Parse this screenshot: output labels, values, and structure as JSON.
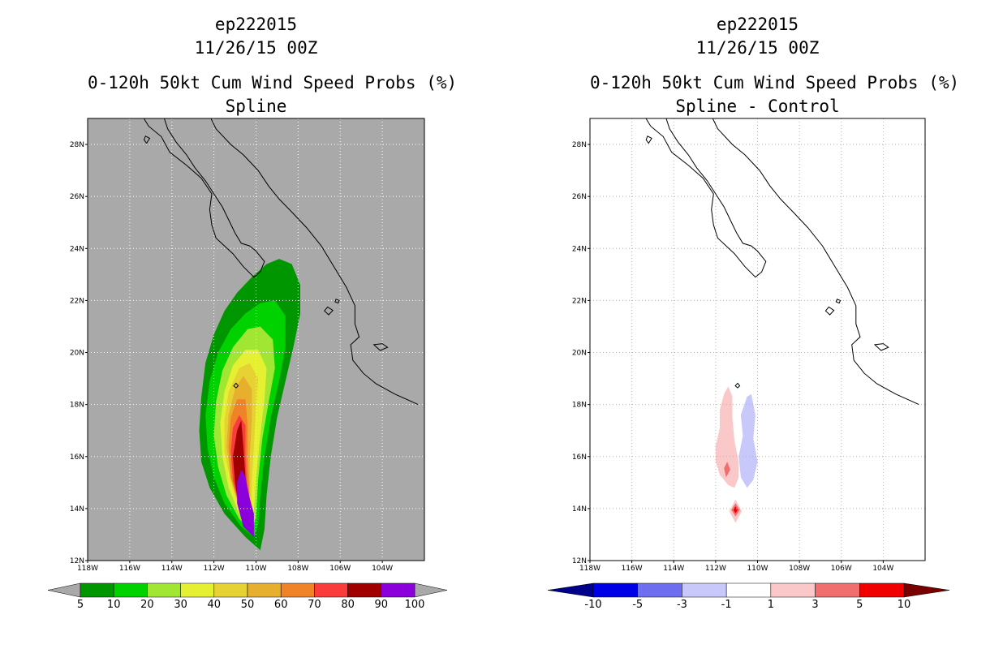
{
  "chart_data": [
    {
      "type": "contour_map",
      "title": [
        "ep222015",
        "11/26/15 00Z"
      ],
      "subtitle": [
        "0-120h 50kt Cum Wind Speed Probs (%)",
        "Spline"
      ],
      "units": "%",
      "xlim": [
        -118,
        -102
      ],
      "ylim": [
        12,
        29
      ],
      "x_ticks": [
        "118W",
        "116W",
        "114W",
        "112W",
        "110W",
        "108W",
        "106W",
        "104W"
      ],
      "y_ticks": [
        "12N",
        "14N",
        "16N",
        "18N",
        "20N",
        "22N",
        "24N",
        "26N",
        "28N"
      ],
      "background_color": "#a9a9a9",
      "colorbar": {
        "labels": [
          "5",
          "10",
          "20",
          "30",
          "40",
          "50",
          "60",
          "70",
          "80",
          "90",
          "100"
        ],
        "colors": [
          "#009600",
          "#00d200",
          "#a0e632",
          "#e6f032",
          "#e6d232",
          "#e6af2d",
          "#f08228",
          "#fa3c3c",
          "#a00000",
          "#8c00dc"
        ],
        "end_colors": [
          "#a9a9a9",
          "#a9a9a9"
        ]
      },
      "levels": [
        {
          "min": 5,
          "color": "#009600",
          "polygon": [
            [
              -109.8,
              12.4
            ],
            [
              -110.5,
              12.9
            ],
            [
              -111.5,
              13.8
            ],
            [
              -112.2,
              14.8
            ],
            [
              -112.6,
              15.8
            ],
            [
              -112.7,
              17
            ],
            [
              -112.6,
              18.3
            ],
            [
              -112.4,
              19.6
            ],
            [
              -112,
              20.7
            ],
            [
              -111.5,
              21.6
            ],
            [
              -110.9,
              22.3
            ],
            [
              -110.2,
              22.9
            ],
            [
              -109.5,
              23.4
            ],
            [
              -108.9,
              23.6
            ],
            [
              -108.3,
              23.4
            ],
            [
              -107.9,
              22.6
            ],
            [
              -107.9,
              21.5
            ],
            [
              -108.2,
              20.3
            ],
            [
              -108.6,
              18.9
            ],
            [
              -109,
              17.5
            ],
            [
              -109.3,
              16
            ],
            [
              -109.5,
              14.5
            ],
            [
              -109.6,
              13.2
            ]
          ]
        },
        {
          "min": 10,
          "color": "#00d200",
          "polygon": [
            [
              -110.1,
              12.9
            ],
            [
              -110.7,
              13.3
            ],
            [
              -111.5,
              14.2
            ],
            [
              -112,
              15.2
            ],
            [
              -112.3,
              16.3
            ],
            [
              -112.4,
              17.6
            ],
            [
              -112.2,
              18.9
            ],
            [
              -111.8,
              20
            ],
            [
              -111.2,
              20.9
            ],
            [
              -110.5,
              21.5
            ],
            [
              -109.8,
              21.9
            ],
            [
              -109.1,
              22
            ],
            [
              -108.6,
              21.4
            ],
            [
              -108.6,
              20.2
            ],
            [
              -108.9,
              18.9
            ],
            [
              -109.3,
              17.5
            ],
            [
              -109.6,
              16
            ],
            [
              -109.8,
              14.5
            ],
            [
              -109.9,
              13.4
            ]
          ]
        },
        {
          "min": 20,
          "color": "#a0e632",
          "polygon": [
            [
              -110.2,
              13.1
            ],
            [
              -110.8,
              13.6
            ],
            [
              -111.4,
              14.5
            ],
            [
              -111.8,
              15.6
            ],
            [
              -112,
              16.8
            ],
            [
              -111.9,
              18.1
            ],
            [
              -111.6,
              19.3
            ],
            [
              -111.1,
              20.2
            ],
            [
              -110.4,
              20.9
            ],
            [
              -109.8,
              21
            ],
            [
              -109.2,
              20.5
            ],
            [
              -109.1,
              19.4
            ],
            [
              -109.4,
              18.1
            ],
            [
              -109.7,
              16.7
            ],
            [
              -109.9,
              15.1
            ],
            [
              -110,
              13.7
            ]
          ]
        },
        {
          "min": 30,
          "color": "#e6f032",
          "polygon": [
            [
              -110.2,
              13.2
            ],
            [
              -110.8,
              13.8
            ],
            [
              -111.3,
              14.8
            ],
            [
              -111.6,
              16
            ],
            [
              -111.7,
              17.3
            ],
            [
              -111.5,
              18.5
            ],
            [
              -111.1,
              19.5
            ],
            [
              -110.5,
              20.1
            ],
            [
              -109.9,
              20.1
            ],
            [
              -109.5,
              19.4
            ],
            [
              -109.6,
              18.2
            ],
            [
              -109.8,
              16.8
            ],
            [
              -110,
              15.2
            ],
            [
              -110.1,
              13.9
            ]
          ]
        },
        {
          "min": 40,
          "color": "#e6d232",
          "polygon": [
            [
              -110.3,
              13.3
            ],
            [
              -110.8,
              14
            ],
            [
              -111.2,
              15
            ],
            [
              -111.5,
              16.2
            ],
            [
              -111.5,
              17.4
            ],
            [
              -111.3,
              18.5
            ],
            [
              -110.8,
              19.4
            ],
            [
              -110.3,
              19.6
            ],
            [
              -109.9,
              19
            ],
            [
              -110,
              17.8
            ],
            [
              -110.1,
              16.4
            ],
            [
              -110.2,
              15
            ],
            [
              -110.2,
              14
            ]
          ]
        },
        {
          "min": 50,
          "color": "#e6af2d",
          "polygon": [
            [
              -110.3,
              13.3
            ],
            [
              -110.8,
              14.1
            ],
            [
              -111.2,
              15.2
            ],
            [
              -111.4,
              16.4
            ],
            [
              -111.3,
              17.6
            ],
            [
              -111,
              18.6
            ],
            [
              -110.6,
              19.1
            ],
            [
              -110.2,
              18.6
            ],
            [
              -110.2,
              17.4
            ],
            [
              -110.3,
              16
            ],
            [
              -110.3,
              14.6
            ]
          ]
        },
        {
          "min": 60,
          "color": "#f08228",
          "polygon": [
            [
              -110.3,
              13.3
            ],
            [
              -110.8,
              14.1
            ],
            [
              -111.2,
              15.2
            ],
            [
              -111.3,
              16.4
            ],
            [
              -111.2,
              17.5
            ],
            [
              -110.9,
              18.2
            ],
            [
              -110.5,
              18.2
            ],
            [
              -110.4,
              17.2
            ],
            [
              -110.4,
              15.8
            ],
            [
              -110.3,
              14.4
            ]
          ]
        },
        {
          "min": 70,
          "color": "#fa3c3c",
          "polygon": [
            [
              -110.3,
              13.3
            ],
            [
              -110.8,
              14.1
            ],
            [
              -111.1,
              15.1
            ],
            [
              -111.2,
              16.2
            ],
            [
              -111.1,
              17.1
            ],
            [
              -110.8,
              17.6
            ],
            [
              -110.5,
              17.2
            ],
            [
              -110.5,
              16
            ],
            [
              -110.4,
              14.5
            ]
          ]
        },
        {
          "min": 80,
          "color": "#a00000",
          "polygon": [
            [
              -110.4,
              13.2
            ],
            [
              -110.8,
              14
            ],
            [
              -111,
              15
            ],
            [
              -111.1,
              16
            ],
            [
              -110.9,
              17
            ],
            [
              -110.7,
              17.4
            ],
            [
              -110.6,
              16.4
            ],
            [
              -110.5,
              15.2
            ],
            [
              -110.4,
              14.1
            ]
          ]
        },
        {
          "min": 90,
          "color": "#8c00dc",
          "polygon": [
            [
              -110.1,
              12.9
            ],
            [
              -110.6,
              13.3
            ],
            [
              -110.9,
              14.2
            ],
            [
              -110.9,
              15
            ],
            [
              -110.7,
              15.5
            ],
            [
              -110.5,
              15.2
            ],
            [
              -110.3,
              14.4
            ],
            [
              -110.1,
              13.8
            ]
          ]
        }
      ]
    },
    {
      "type": "contour_map",
      "title": [
        "ep222015",
        "11/26/15 00Z"
      ],
      "subtitle": [
        "0-120h 50kt Cum Wind Speed Probs (%)",
        "Spline - Control"
      ],
      "units": "%",
      "xlim": [
        -118,
        -102
      ],
      "ylim": [
        12,
        29
      ],
      "x_ticks": [
        "118W",
        "116W",
        "114W",
        "112W",
        "110W",
        "108W",
        "106W",
        "104W"
      ],
      "y_ticks": [
        "12N",
        "14N",
        "16N",
        "18N",
        "20N",
        "22N",
        "24N",
        "26N",
        "28N"
      ],
      "background_color": "#ffffff",
      "colorbar": {
        "labels": [
          "-10",
          "-5",
          "-3",
          "-1",
          "1",
          "3",
          "5",
          "10"
        ],
        "colors": [
          "#0000e6",
          "#6e6ef0",
          "#c8c8fa",
          "#ffffff",
          "#fac8c8",
          "#f06e6e",
          "#f00000"
        ],
        "end_colors": [
          "#00008c",
          "#780000"
        ]
      },
      "levels": [
        {
          "min": 1,
          "color": "#fac8c8",
          "polygon": [
            [
              -111.4,
              14.9
            ],
            [
              -111.8,
              15.3
            ],
            [
              -112,
              15.8
            ],
            [
              -112,
              16.4
            ],
            [
              -111.8,
              17.1
            ],
            [
              -111.8,
              17.8
            ],
            [
              -111.6,
              18.4
            ],
            [
              -111.4,
              18.7
            ],
            [
              -111.2,
              18.3
            ],
            [
              -111.2,
              17.5
            ],
            [
              -111.1,
              16.6
            ],
            [
              -110.9,
              15.8
            ],
            [
              -110.9,
              15.2
            ],
            [
              -111.1,
              14.8
            ]
          ]
        },
        {
          "min": 1,
          "color": "#fac8c8",
          "polygon": [
            [
              -111.35,
              13.9
            ],
            [
              -111.05,
              14.35
            ],
            [
              -110.75,
              13.9
            ],
            [
              -111.05,
              13.45
            ]
          ]
        },
        {
          "min": 3,
          "color": "#f06e6e",
          "polygon": [
            [
              -111.5,
              15.2
            ],
            [
              -111.6,
              15.55
            ],
            [
              -111.45,
              15.8
            ],
            [
              -111.3,
              15.5
            ]
          ]
        },
        {
          "min": 3,
          "color": "#f06e6e",
          "polygon": [
            [
              -111.25,
              13.95
            ],
            [
              -111.05,
              14.2
            ],
            [
              -110.85,
              13.95
            ],
            [
              -111.05,
              13.7
            ]
          ]
        },
        {
          "min": 5,
          "color": "#f00000",
          "polygon": [
            [
              -111.15,
              13.95
            ],
            [
              -111.05,
              14.08
            ],
            [
              -110.95,
              13.95
            ],
            [
              -111.05,
              13.82
            ]
          ]
        },
        {
          "max": -1,
          "color": "#c8c8fa",
          "polygon": [
            [
              -110.5,
              14.8
            ],
            [
              -110.8,
              15.2
            ],
            [
              -110.9,
              16
            ],
            [
              -110.7,
              16.8
            ],
            [
              -110.8,
              17.6
            ],
            [
              -110.5,
              18.3
            ],
            [
              -110.3,
              18.4
            ],
            [
              -110.1,
              17.6
            ],
            [
              -110.2,
              16.7
            ],
            [
              -110,
              15.8
            ],
            [
              -110.2,
              15.1
            ]
          ]
        }
      ]
    }
  ]
}
